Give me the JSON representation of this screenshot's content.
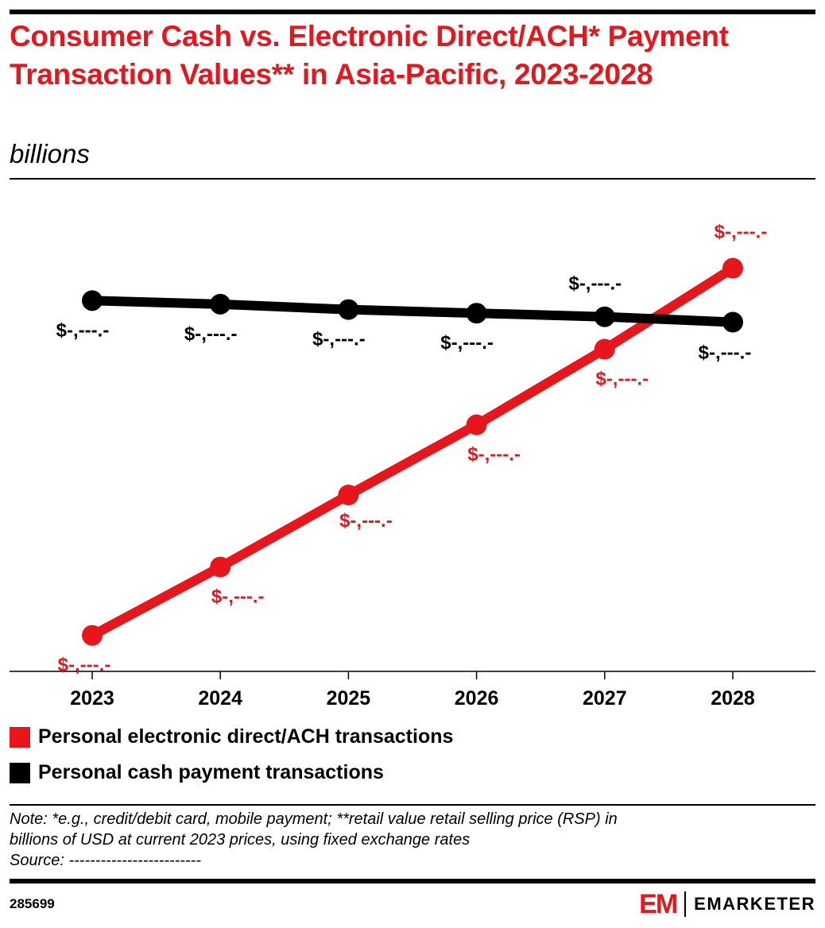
{
  "header": {
    "title": "Consumer Cash vs. Electronic Direct/ACH* Payment Transaction Values** in Asia-Pacific, 2023-2028",
    "subtitle": "billions"
  },
  "colors": {
    "accent": "#e8151b",
    "dark": "#000000"
  },
  "chart_data": {
    "type": "line",
    "x": [
      "2023",
      "2024",
      "2025",
      "2026",
      "2027",
      "2028"
    ],
    "ylim": [
      0,
      1300
    ],
    "grid": false,
    "legend_placement": "bottom-left",
    "series": [
      {
        "name": "Personal electronic direct/ACH transactions",
        "color": "#e8151b",
        "values": [
          100,
          290,
          490,
          685,
          895,
          1120
        ],
        "labels": [
          "$-,---.-",
          "$-,---.-",
          "$-,---.-",
          "$-,---.-",
          "$-,---.-",
          "$-,---.-"
        ]
      },
      {
        "name": "Personal cash payment transactions",
        "color": "#000000",
        "values": [
          1030,
          1020,
          1005,
          995,
          985,
          970
        ],
        "labels": [
          "$-,---.-",
          "$-,---.-",
          "$-,---.-",
          "$-,---.-",
          "$-,---.-",
          "$-,---.-"
        ]
      }
    ]
  },
  "footer": {
    "note_line1": "Note: *e.g., credit/debit card, mobile payment; **retail value retail selling price (RSP) in",
    "note_line2": "billions of USD at current 2023 prices, using fixed exchange rates",
    "source": "Source: -------------------------",
    "chart_id": "285699",
    "logo_mark": "EM",
    "logo_text": "EMARKETER"
  }
}
